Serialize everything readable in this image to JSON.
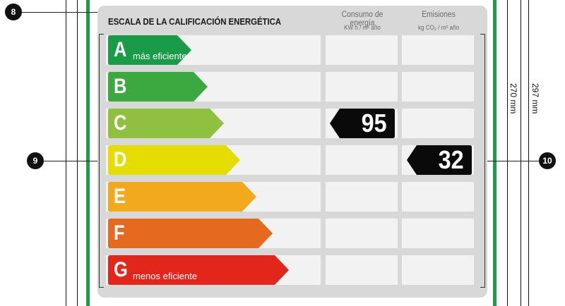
{
  "title": "ESCALA DE LA CALIFICACIÓN ENERGÉTICA",
  "columns": [
    {
      "label": "Consumo de energía",
      "unit": "KW h / m² año"
    },
    {
      "label": "Emisiones",
      "unit": "kg CO₂ / m² año"
    }
  ],
  "ratings": [
    {
      "letter": "A",
      "sublabel": "más eficiente",
      "color": "#1a9b48"
    },
    {
      "letter": "B",
      "sublabel": "",
      "color": "#3ba93f"
    },
    {
      "letter": "C",
      "sublabel": "",
      "color": "#8fc040"
    },
    {
      "letter": "D",
      "sublabel": "",
      "color": "#e5dd00"
    },
    {
      "letter": "E",
      "sublabel": "",
      "color": "#f2a91d"
    },
    {
      "letter": "F",
      "sublabel": "",
      "color": "#e56a1f"
    },
    {
      "letter": "G",
      "sublabel": "menos eficiente",
      "color": "#e3261b"
    }
  ],
  "energy_value": {
    "value": "95",
    "rating": "C"
  },
  "emissions_value": {
    "value": "32",
    "rating": "D"
  },
  "callouts": {
    "c8": "8",
    "c9": "9",
    "c10": "10"
  },
  "dimensions": {
    "inner": "270 mm",
    "outer": "297 mm"
  }
}
